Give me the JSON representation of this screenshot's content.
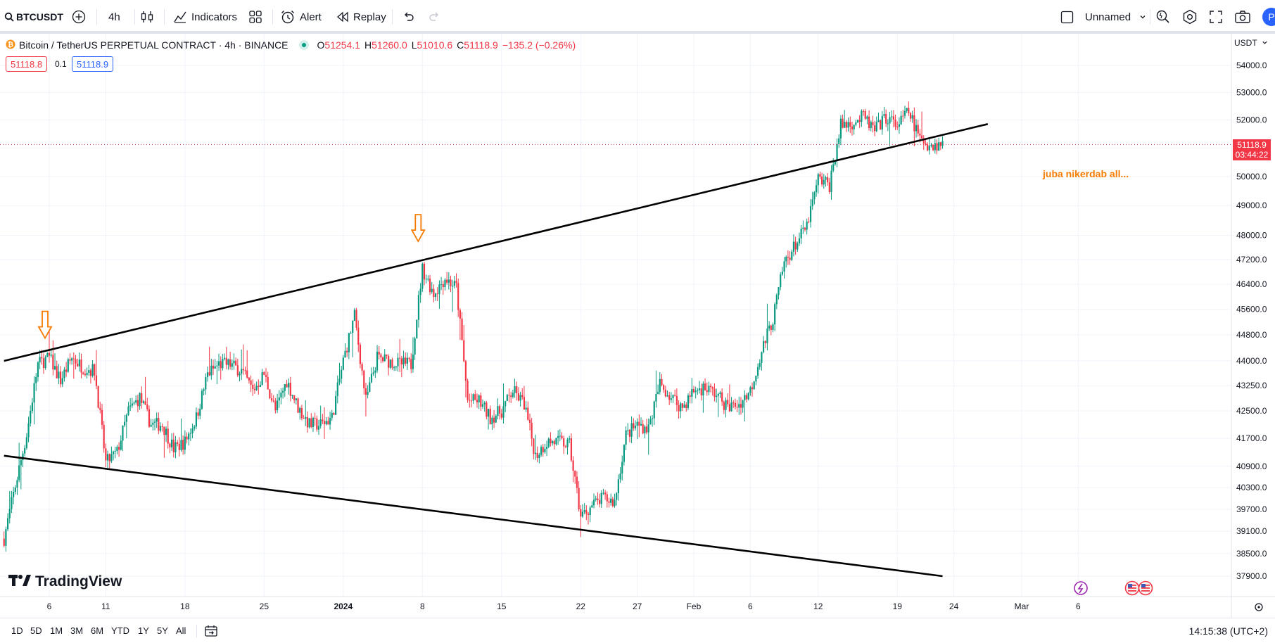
{
  "toolbar": {
    "symbol": "BTCUSDT",
    "interval": "4h",
    "indicators_label": "Indicators",
    "alert_label": "Alert",
    "replay_label": "Replay",
    "layout_name": "Unnamed",
    "avatar_letter": "P"
  },
  "legend": {
    "title": "Bitcoin / TetherUS PERPETUAL CONTRACT · 4h · BINANCE",
    "open_label": "O",
    "open": "51254.1",
    "high_label": "H",
    "high": "51260.0",
    "low_label": "L",
    "low": "51010.6",
    "close_label": "C",
    "close": "51118.9",
    "change": "−135.2 (−0.26%)",
    "bid": "51118.8",
    "spread": "0.1",
    "ask": "51118.9"
  },
  "price_axis": {
    "currency": "USDT",
    "last_price": "51118.9",
    "countdown": "03:44:22"
  },
  "annotation_text": "juba nikerdab all...",
  "logo_text": "TradingView",
  "bottom": {
    "ranges": [
      "1D",
      "5D",
      "1M",
      "3M",
      "6M",
      "YTD",
      "1Y",
      "5Y",
      "All"
    ],
    "clock": "14:15:38 (UTC+2)"
  },
  "colors": {
    "up": "#089981",
    "down": "#f23645",
    "accent": "#2962ff",
    "arrow": "#f57c00"
  },
  "chart_data": {
    "type": "candlestick",
    "symbol": "BTCUSDT",
    "interval": "4h",
    "ylim": [
      37500,
      54300
    ],
    "y_scale": "log",
    "y_ticks": [
      "54000.0",
      "53000.0",
      "52000.0",
      "51000.0",
      "50000.0",
      "49000.0",
      "48000.0",
      "47200.0",
      "46400.0",
      "45600.0",
      "44800.0",
      "44000.0",
      "43250.0",
      "42500.0",
      "41700.0",
      "40900.0",
      "40300.0",
      "39700.0",
      "39100.0",
      "38500.0",
      "37900.0"
    ],
    "x_ticks": [
      "6",
      "11",
      "18",
      "25",
      "2024",
      "8",
      "15",
      "22",
      "27",
      "Feb",
      "6",
      "12",
      "19",
      "24",
      "Mar",
      "6"
    ],
    "x_tick_dates": [
      "2023-12-06",
      "2023-12-11",
      "2023-12-18",
      "2023-12-25",
      "2024-01-01",
      "2024-01-08",
      "2024-01-15",
      "2024-01-22",
      "2024-01-27",
      "2024-02-01",
      "2024-02-06",
      "2024-02-12",
      "2024-02-19",
      "2024-02-24",
      "2024-03-01",
      "2024-03-06"
    ],
    "close_path": [
      [
        "2023-12-02",
        38900
      ],
      [
        "2023-12-04",
        41800
      ],
      [
        "2023-12-05",
        43900
      ],
      [
        "2023-12-06",
        44100
      ],
      [
        "2023-12-07",
        43400
      ],
      [
        "2023-12-08",
        44100
      ],
      [
        "2023-12-09",
        43800
      ],
      [
        "2023-12-10",
        43700
      ],
      [
        "2023-12-11",
        41000
      ],
      [
        "2023-12-12",
        41300
      ],
      [
        "2023-12-13",
        42500
      ],
      [
        "2023-12-14",
        42900
      ],
      [
        "2023-12-15",
        42100
      ],
      [
        "2023-12-16",
        42100
      ],
      [
        "2023-12-17",
        41400
      ],
      [
        "2023-12-18",
        41600
      ],
      [
        "2023-12-19",
        42300
      ],
      [
        "2023-12-20",
        43600
      ],
      [
        "2023-12-21",
        43900
      ],
      [
        "2023-12-22",
        43900
      ],
      [
        "2023-12-23",
        43700
      ],
      [
        "2023-12-24",
        43100
      ],
      [
        "2023-12-25",
        43600
      ],
      [
        "2023-12-26",
        42500
      ],
      [
        "2023-12-27",
        43400
      ],
      [
        "2023-12-28",
        42600
      ],
      [
        "2023-12-29",
        42100
      ],
      [
        "2023-12-30",
        42100
      ],
      [
        "2023-12-31",
        42300
      ],
      [
        "2024-01-01",
        44000
      ],
      [
        "2024-01-02",
        45400
      ],
      [
        "2024-01-03",
        42800
      ],
      [
        "2024-01-04",
        44100
      ],
      [
        "2024-01-05",
        44000
      ],
      [
        "2024-01-06",
        43900
      ],
      [
        "2024-01-07",
        43900
      ],
      [
        "2024-01-08",
        46900
      ],
      [
        "2024-01-09",
        46100
      ],
      [
        "2024-01-10",
        46600
      ],
      [
        "2024-01-11",
        46300
      ],
      [
        "2024-01-12",
        42800
      ],
      [
        "2024-01-13",
        42800
      ],
      [
        "2024-01-14",
        42300
      ],
      [
        "2024-01-15",
        42500
      ],
      [
        "2024-01-16",
        43100
      ],
      [
        "2024-01-17",
        42700
      ],
      [
        "2024-01-18",
        41200
      ],
      [
        "2024-01-19",
        41600
      ],
      [
        "2024-01-20",
        41600
      ],
      [
        "2024-01-21",
        41500
      ],
      [
        "2024-01-22",
        39500
      ],
      [
        "2024-01-23",
        39800
      ],
      [
        "2024-01-24",
        40000
      ],
      [
        "2024-01-25",
        39900
      ],
      [
        "2024-01-26",
        41800
      ],
      [
        "2024-01-27",
        42100
      ],
      [
        "2024-01-28",
        42000
      ],
      [
        "2024-01-29",
        43300
      ],
      [
        "2024-01-30",
        42900
      ],
      [
        "2024-01-31",
        42600
      ],
      [
        "2024-02-01",
        43100
      ],
      [
        "2024-02-02",
        43200
      ],
      [
        "2024-02-03",
        43000
      ],
      [
        "2024-02-04",
        42600
      ],
      [
        "2024-02-05",
        42700
      ],
      [
        "2024-02-06",
        43100
      ],
      [
        "2024-02-07",
        44300
      ],
      [
        "2024-02-08",
        45300
      ],
      [
        "2024-02-09",
        47100
      ],
      [
        "2024-02-10",
        47700
      ],
      [
        "2024-02-11",
        48300
      ],
      [
        "2024-02-12",
        49900
      ],
      [
        "2024-02-13",
        49700
      ],
      [
        "2024-02-14",
        51800
      ],
      [
        "2024-02-15",
        51900
      ],
      [
        "2024-02-16",
        52100
      ],
      [
        "2024-02-17",
        51600
      ],
      [
        "2024-02-18",
        52100
      ],
      [
        "2024-02-19",
        51800
      ],
      [
        "2024-02-20",
        52300
      ],
      [
        "2024-02-21",
        51300
      ],
      [
        "2024-02-22",
        51100
      ],
      [
        "2024-02-23",
        51119
      ]
    ],
    "trendlines": [
      {
        "from": [
          "2023-12-02",
          44000
        ],
        "to": [
          "2024-02-27",
          51850
        ]
      },
      {
        "from": [
          "2023-12-02",
          41200
        ],
        "to": [
          "2024-02-23",
          37900
        ]
      }
    ],
    "markers": [
      {
        "type": "arrow-down",
        "at": [
          "2023-12-06",
          44700
        ]
      },
      {
        "type": "arrow-down",
        "at": [
          "2024-01-08",
          47800
        ]
      }
    ],
    "last_price": 51118.9,
    "grid": true
  }
}
